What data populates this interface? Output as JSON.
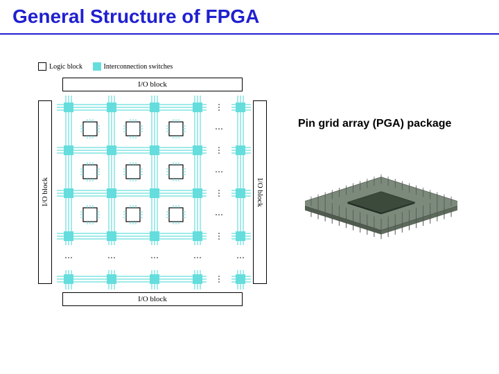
{
  "title": "General Structure of FPGA",
  "legend": {
    "logic_block": "Logic block",
    "interconnect": "Interconnection switches"
  },
  "io_label": "I/O block",
  "pga_caption": "Pin grid array (PGA) package",
  "fpga": {
    "switch_color": "#66dddd",
    "wire_color": "#66dddd",
    "logic_block_border": "#000000",
    "rows": 4,
    "cols": 4,
    "break_before_last": true,
    "cell_pitch": 62,
    "switch_size": 14,
    "logic_size": 20,
    "wire_count": 3,
    "wire_spacing": 4
  },
  "pga": {
    "substrate_color": "#7b8a7a",
    "die_color": "#3b4a3b",
    "pin_color": "#555555",
    "pin_rows": 12,
    "pin_cols": 12
  },
  "colors": {
    "title": "#2020d0",
    "underline": "#2020d0"
  }
}
